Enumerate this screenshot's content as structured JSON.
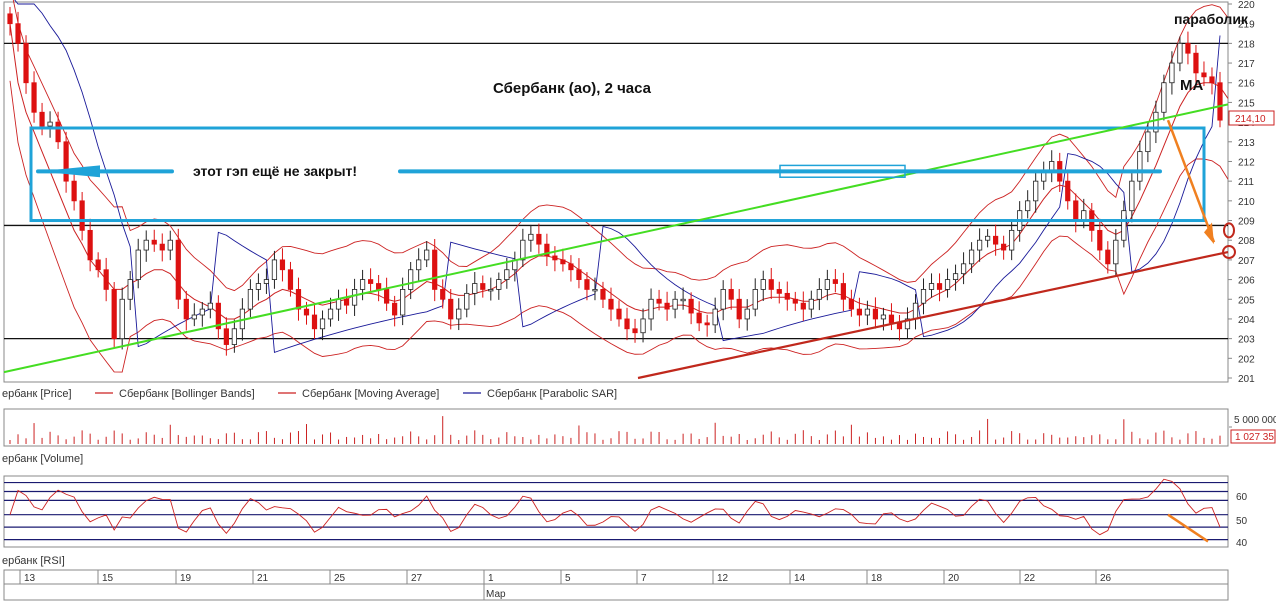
{
  "chart_data": {
    "type": "candlestick",
    "title": "Сбербанк (ао),  2 часа",
    "annotations": {
      "gap": "этот гэп ещё не закрыт!",
      "parabolic": "параболик",
      "ma": "МА"
    },
    "price_panel": {
      "ylim": [
        201,
        220
      ],
      "yticks": [
        201,
        202,
        203,
        204,
        205,
        206,
        207,
        208,
        209,
        210,
        211,
        212,
        213,
        214,
        215,
        216,
        217,
        218,
        219,
        220
      ],
      "last_price": "214,10",
      "horizontal_levels": [
        218,
        208.75,
        203
      ],
      "gap_zone": [
        209,
        213.7
      ],
      "legend": [
        "ербанк [Price]",
        "Сбербанк [Bollinger Bands]",
        "Сбербанк [Moving Average]",
        "Сбербанк [Parabolic SAR]"
      ],
      "close_series": [
        219,
        218,
        216,
        214.5,
        213.8,
        214,
        213,
        211,
        210,
        208.5,
        207,
        206.5,
        205.5,
        203,
        205,
        206,
        207.5,
        208,
        207.8,
        207.5,
        208,
        205,
        204,
        204.2,
        204.5,
        204.8,
        203.5,
        202.7,
        203.5,
        204.5,
        205.5,
        205.8,
        206,
        207,
        206.5,
        205.5,
        204.5,
        204.2,
        203.5,
        204,
        204.5,
        205,
        204.7,
        205.5,
        206,
        205.8,
        205.5,
        204.8,
        204.2,
        205.5,
        206.5,
        207,
        207.5,
        205.5,
        205,
        204,
        204.5,
        205.3,
        205.8,
        205.5,
        205.5,
        206,
        206.5,
        207,
        208,
        208.3,
        207.8,
        207.2,
        207,
        206.8,
        206.5,
        206,
        205.5,
        205.5,
        205,
        204.5,
        204,
        203.5,
        203.3,
        204,
        205,
        204.8,
        204.5,
        205,
        205,
        204.3,
        203.8,
        203.7,
        204.5,
        205.5,
        205,
        204,
        204.5,
        205.5,
        206,
        205.5,
        205.3,
        205,
        204.8,
        204.5,
        205,
        205.5,
        206,
        205.8,
        205,
        204.5,
        204.2,
        204.5,
        204,
        204.2,
        203.8,
        203.5,
        204,
        204.8,
        205.5,
        205.8,
        205.5,
        206,
        206.3,
        206.8,
        207.5,
        208,
        208.2,
        207.8,
        207.5,
        208.5,
        209.5,
        210,
        211,
        211.5,
        212,
        211,
        210,
        209,
        209.5,
        208.5,
        207.5,
        206.8,
        208,
        209.5,
        211,
        212.5,
        213.5,
        214.5,
        216,
        217,
        218,
        217.5,
        216.5,
        216.3,
        216,
        214.1
      ],
      "ma_series": [
        219,
        216,
        214.5,
        213.5,
        212.5,
        211.5,
        210.5,
        209.5,
        208.5,
        207.8,
        207,
        206.5,
        206,
        205.5,
        205.5,
        205.8,
        206,
        206.3,
        206.5,
        206.5,
        206.3,
        205.8,
        205.3,
        205,
        204.8,
        204.6,
        204.3,
        204,
        204,
        204.2,
        204.5,
        204.8,
        205,
        205.3,
        205.5,
        205.4,
        205.2,
        205,
        204.8,
        204.7,
        204.8,
        204.9,
        205,
        205.2,
        205.3,
        205.3,
        205.2,
        205,
        204.9,
        205,
        205.3,
        205.6,
        205.9,
        205.8,
        205.6,
        205.3,
        205.2,
        205.2,
        205.3,
        205.4,
        205.5,
        205.7,
        206,
        206.3,
        206.7,
        207,
        207.2,
        207.2,
        207.1,
        207,
        206.8,
        206.5,
        206.2,
        205.9,
        205.6,
        205.3,
        205,
        204.7,
        204.5,
        204.4,
        204.5,
        204.6,
        204.6,
        204.7,
        204.7,
        204.6,
        204.4,
        204.3,
        204.3,
        204.5,
        204.6,
        204.6,
        204.6,
        204.8,
        205,
        205.1,
        205.1,
        205.1,
        205,
        204.9,
        204.9,
        205,
        205.2,
        205.3,
        205.2,
        205,
        204.8,
        204.7,
        204.6,
        204.5,
        204.4,
        204.3,
        204.3,
        204.5,
        204.8,
        205.1,
        205.3,
        205.5,
        205.8,
        206.2,
        206.6,
        207,
        207.3,
        207.5,
        207.6,
        207.8,
        208.3,
        208.9,
        209.5,
        210.1,
        210.6,
        210.8,
        210.7,
        210.3,
        209.9,
        209.5,
        209,
        208.5,
        208.3,
        208.5,
        209.2,
        210,
        210.9,
        211.8,
        212.8,
        213.8,
        214.8,
        215.5,
        215.9,
        216,
        216,
        215.8,
        215.2
      ]
    },
    "volume_panel": {
      "label": "ербанк [Volume]",
      "ticks": [
        "5 000 000",
        "1 027 35"
      ],
      "max": 5000000
    },
    "rsi_panel": {
      "label": "ербанк [RSI]",
      "ticks": [
        60,
        50,
        40
      ],
      "levels": [
        70,
        65,
        60,
        52,
        45,
        38
      ],
      "ylim": [
        35,
        72
      ]
    },
    "x_axis": {
      "ticks": [
        "13",
        "15",
        "19",
        "21",
        "25",
        "27",
        "1",
        "5",
        "7",
        "12",
        "14",
        "18",
        "20",
        "22",
        "26"
      ],
      "month_label": "Мар"
    },
    "colors": {
      "candle_up": "#ffffff",
      "candle_down": "#dd1111",
      "ma": "#cc2222",
      "bollinger": "#cc2222",
      "sar": "#1a1a99",
      "support": "#c0281c",
      "trend_green": "#44dd22",
      "gap_box": "#1fa3d8",
      "arrow": "#f08020",
      "level": "#111111"
    }
  }
}
